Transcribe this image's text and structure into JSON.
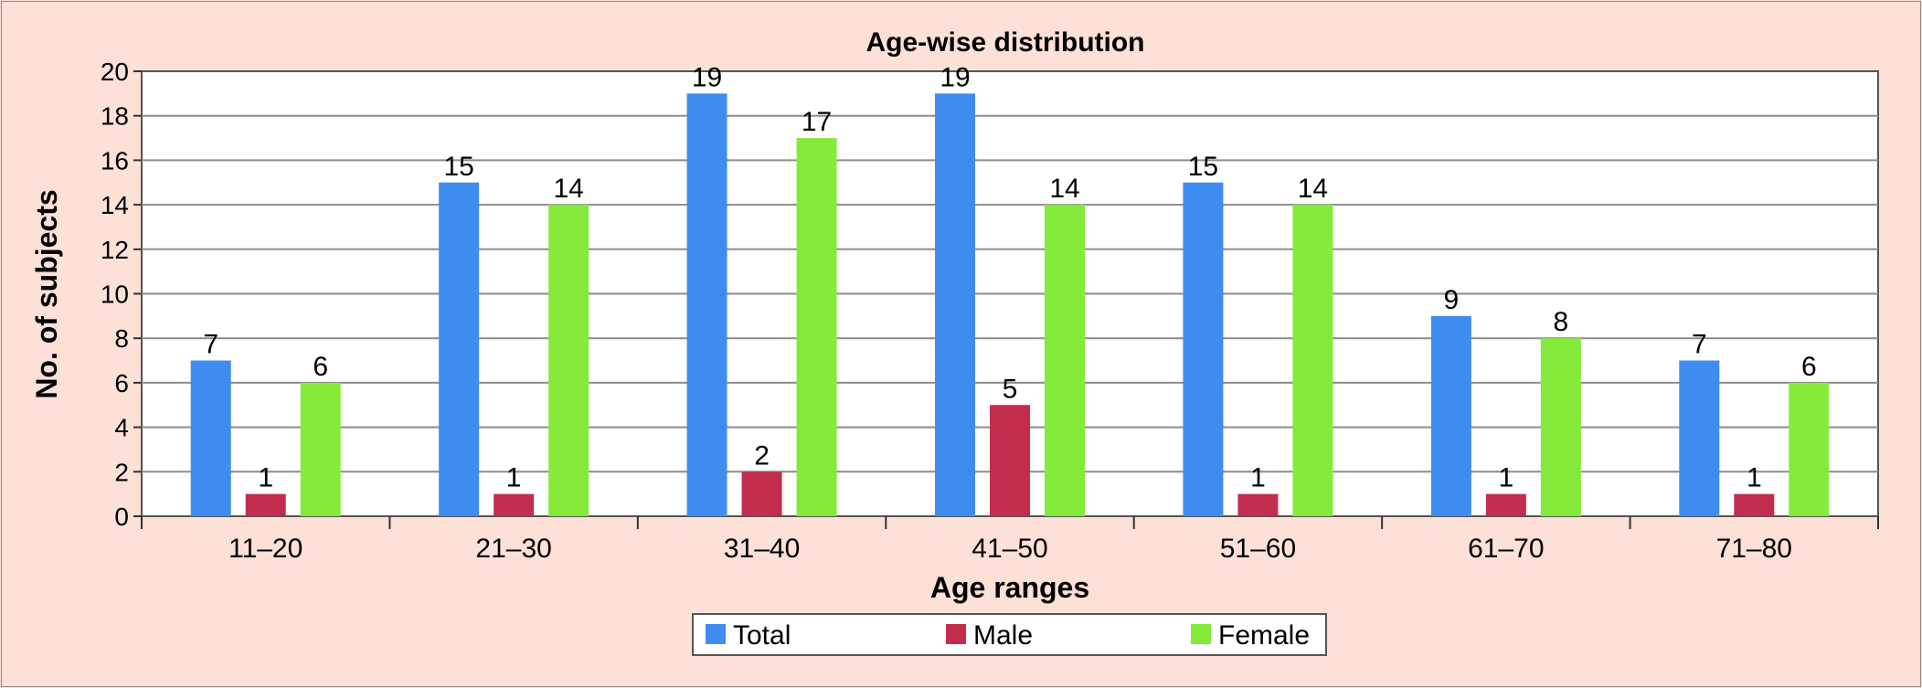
{
  "chart_data": {
    "type": "bar",
    "title": "Age-wise distribution",
    "xlabel": "Age ranges",
    "ylabel": "No. of subjects",
    "categories": [
      "11–20",
      "21–30",
      "31–40",
      "41–50",
      "51–60",
      "61–70",
      "71–80"
    ],
    "series": [
      {
        "name": "Total",
        "color": "#3f8cf0",
        "values": [
          7,
          15,
          19,
          19,
          15,
          9,
          7
        ]
      },
      {
        "name": "Male",
        "color": "#c22d4e",
        "values": [
          1,
          1,
          2,
          5,
          1,
          1,
          1
        ]
      },
      {
        "name": "Female",
        "color": "#85ea3a",
        "values": [
          6,
          14,
          17,
          14,
          14,
          8,
          6
        ]
      }
    ],
    "yticks": [
      "0",
      "2",
      "4",
      "6",
      "8",
      "10",
      "12",
      "14",
      "16",
      "18",
      "20"
    ],
    "ylim": [
      0,
      20
    ],
    "grid": true,
    "legend_position": "bottom-center",
    "data_labels": true
  }
}
